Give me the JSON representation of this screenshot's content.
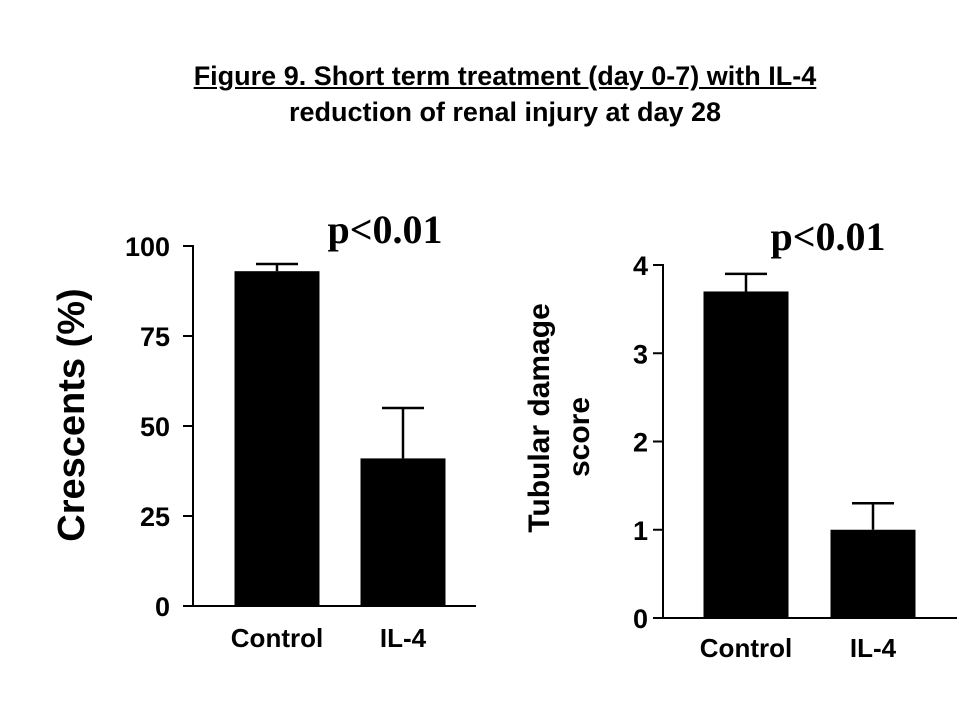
{
  "title": {
    "line1": "Figure 9. Short term treatment (day 0-7) with IL-4",
    "line2": "reduction of renal injury at day 28"
  },
  "colors": {
    "bar": "#000000",
    "axis": "#000000",
    "background": "#ffffff"
  },
  "chart_data": [
    {
      "type": "bar",
      "categories": [
        "Control",
        "IL-4"
      ],
      "values": [
        93,
        41
      ],
      "error_upper": [
        95,
        55
      ],
      "ylabel": "Crescents (%)",
      "ylim": [
        0,
        100
      ],
      "yticks": [
        0,
        25,
        50,
        75,
        100
      ],
      "annotation": "p<0.01",
      "grid": false
    },
    {
      "type": "bar",
      "categories": [
        "Control",
        "IL-4"
      ],
      "values": [
        3.7,
        1.0
      ],
      "error_upper": [
        3.9,
        1.3
      ],
      "ylabel_lines": [
        "Tubular damage",
        "score"
      ],
      "ylim": [
        0,
        4
      ],
      "yticks": [
        0,
        1,
        2,
        3,
        4
      ],
      "annotation": "p<0.01",
      "grid": false
    }
  ]
}
